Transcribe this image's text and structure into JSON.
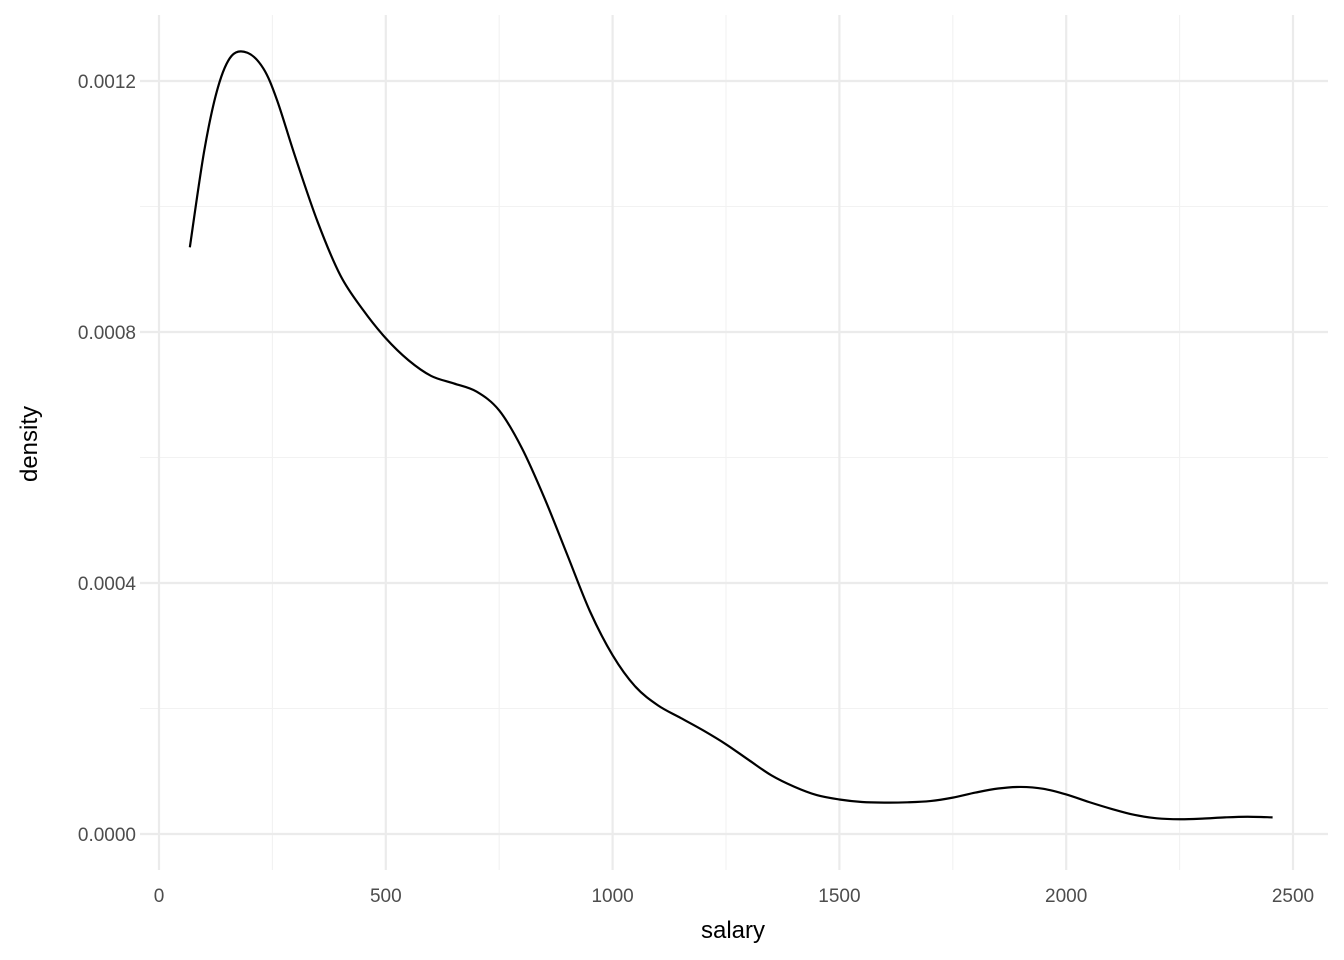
{
  "chart_data": {
    "type": "line",
    "title": "",
    "xlabel": "salary",
    "ylabel": "density",
    "xlim": [
      0,
      2500
    ],
    "ylim": [
      0,
      0.0012
    ],
    "grid": true,
    "x_ticks": [
      0,
      500,
      1000,
      1500,
      2000,
      2500
    ],
    "x_tick_labels": [
      "0",
      "500",
      "1000",
      "1500",
      "2000",
      "2500"
    ],
    "y_ticks": [
      0,
      0.0004,
      0.0008,
      0.0012
    ],
    "y_tick_labels": [
      "0.0000",
      "0.0004",
      "0.0008",
      "0.0012"
    ],
    "series": [
      {
        "x": [
          68,
          100,
          130,
          160,
          195,
          230,
          260,
          300,
          350,
          400,
          450,
          500,
          550,
          600,
          650,
          700,
          750,
          800,
          850,
          900,
          950,
          1000,
          1050,
          1100,
          1150,
          1200,
          1250,
          1300,
          1350,
          1400,
          1450,
          1500,
          1550,
          1600,
          1650,
          1700,
          1750,
          1800,
          1850,
          1900,
          1950,
          2000,
          2050,
          2100,
          2150,
          2200,
          2250,
          2300,
          2350,
          2400,
          2455
        ],
        "y": [
          0.000935,
          0.00109,
          0.00119,
          0.00124,
          0.001245,
          0.00122,
          0.00117,
          0.00108,
          0.000975,
          0.00089,
          0.000835,
          0.00079,
          0.000755,
          0.00073,
          0.000718,
          0.000705,
          0.000675,
          0.000615,
          0.000535,
          0.000445,
          0.000355,
          0.000285,
          0.000235,
          0.000205,
          0.000185,
          0.000165,
          0.000143,
          0.000118,
          9.35e-05,
          7.55e-05,
          6.2e-05,
          5.5e-05,
          5.1e-05,
          5e-05,
          5.05e-05,
          5.25e-05,
          5.8e-05,
          6.6e-05,
          7.25e-05,
          7.5e-05,
          7.2e-05,
          6.3e-05,
          5.1e-05,
          4e-05,
          3.05e-05,
          2.5e-05,
          2.35e-05,
          2.45e-05,
          2.65e-05,
          2.75e-05,
          2.65e-05
        ]
      }
    ]
  }
}
